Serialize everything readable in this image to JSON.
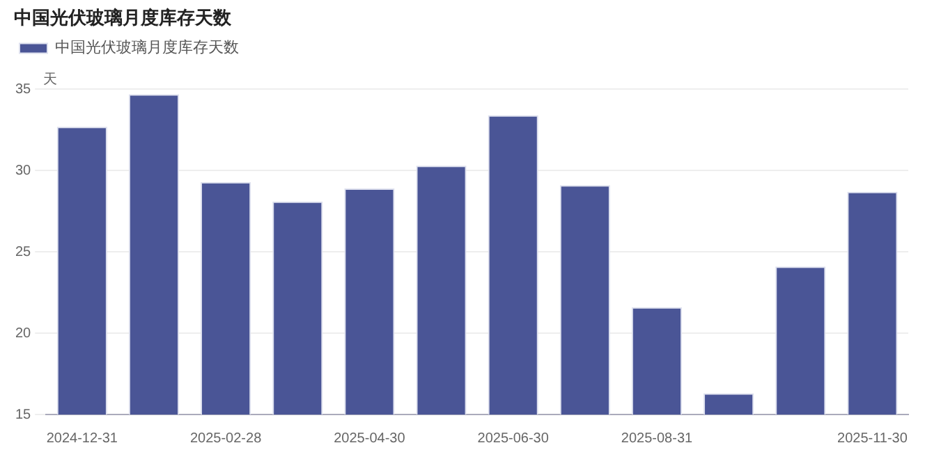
{
  "chart_data": {
    "type": "bar",
    "title": "中国光伏玻璃月度库存天数",
    "ylabel": "天",
    "categories": [
      "2024-12-31",
      null,
      "2025-02-28",
      null,
      "2025-04-30",
      null,
      "2025-06-30",
      null,
      "2025-08-31",
      null,
      null,
      "2025-11-30"
    ],
    "series": [
      {
        "name": "中国光伏玻璃月度库存天数",
        "color": "#4a5596",
        "values": [
          32.7,
          34.7,
          29.3,
          28.1,
          28.9,
          30.3,
          33.4,
          29.1,
          21.6,
          16.3,
          24.1,
          28.7
        ]
      }
    ],
    "ylim": [
      15,
      35
    ],
    "yticks": [
      15,
      20,
      25,
      30,
      35
    ],
    "grid": "y",
    "legend": "top left"
  }
}
